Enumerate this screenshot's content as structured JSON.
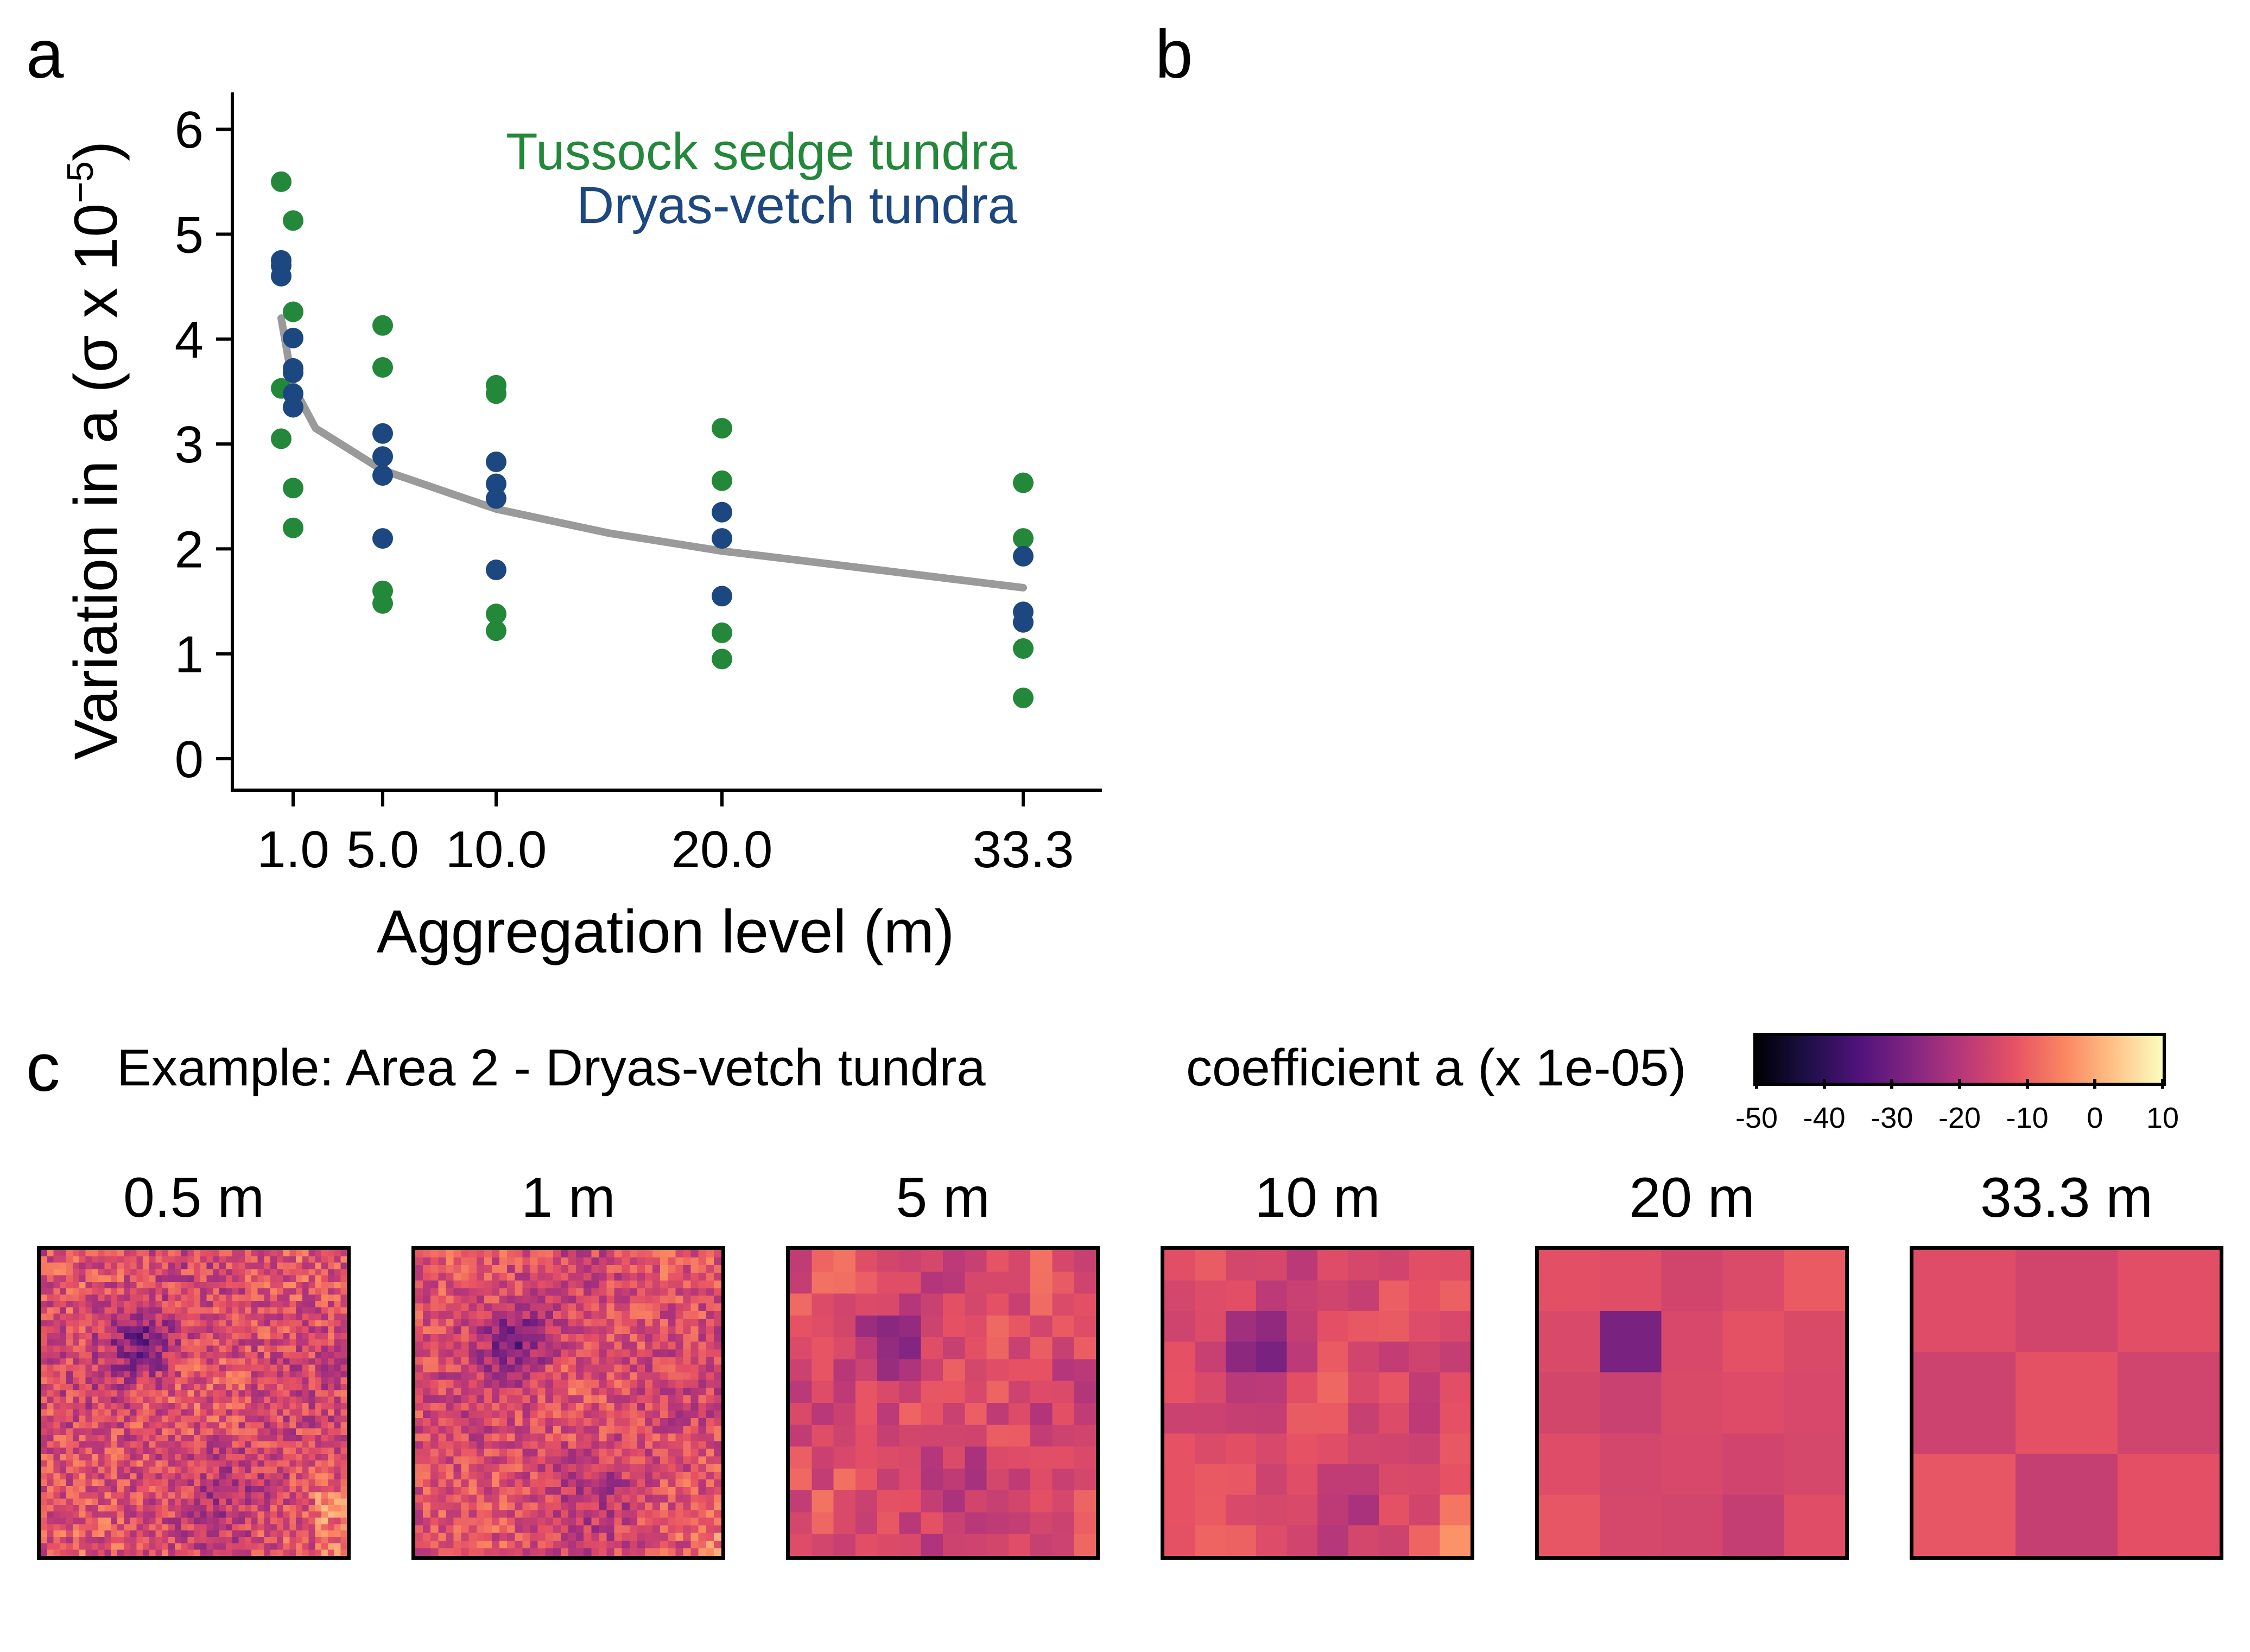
{
  "panels": {
    "a": "a",
    "b": "b",
    "c": "c"
  },
  "chart_data": {
    "type": "scatter",
    "xlabel": "Aggregation level (m)",
    "ylabel": "Variation in a (σ x 10",
    "ylabel_sup": "−5",
    "ylabel_close": ")",
    "x_ticks": [
      1.0,
      5.0,
      10.0,
      20.0,
      33.3
    ],
    "x_tick_labels": [
      "1.0",
      "5.0",
      "10.0",
      "20.0",
      "33.3"
    ],
    "y_ticks": [
      0,
      1,
      2,
      3,
      4,
      5,
      6
    ],
    "ylim": [
      -0.3,
      6.3
    ],
    "grid": false,
    "legend_position": "top-right",
    "series": [
      {
        "name": "Tussock sedge tundra",
        "color": "#23883a",
        "points": [
          [
            0.5,
            5.5
          ],
          [
            1.0,
            5.13
          ],
          [
            1.0,
            4.26
          ],
          [
            0.5,
            3.53
          ],
          [
            0.5,
            3.05
          ],
          [
            1.0,
            2.58
          ],
          [
            1.0,
            2.2
          ],
          [
            5.0,
            4.13
          ],
          [
            5.0,
            3.73
          ],
          [
            5.0,
            1.6
          ],
          [
            5.0,
            1.48
          ],
          [
            10.0,
            3.56
          ],
          [
            10.0,
            3.48
          ],
          [
            10.0,
            1.38
          ],
          [
            10.0,
            1.22
          ],
          [
            20.0,
            3.15
          ],
          [
            20.0,
            2.65
          ],
          [
            20.0,
            1.2
          ],
          [
            20.0,
            0.95
          ],
          [
            33.3,
            2.63
          ],
          [
            33.3,
            2.1
          ],
          [
            33.3,
            1.05
          ],
          [
            33.3,
            0.58
          ]
        ]
      },
      {
        "name": "Dryas-vetch tundra",
        "color": "#1c4780",
        "points": [
          [
            0.5,
            4.75
          ],
          [
            0.5,
            4.7
          ],
          [
            0.5,
            4.6
          ],
          [
            1.0,
            4.01
          ],
          [
            1.0,
            3.72
          ],
          [
            1.0,
            3.68
          ],
          [
            1.0,
            3.48
          ],
          [
            1.0,
            3.35
          ],
          [
            5.0,
            3.1
          ],
          [
            5.0,
            2.88
          ],
          [
            5.0,
            2.7
          ],
          [
            5.0,
            2.1
          ],
          [
            10.0,
            2.83
          ],
          [
            10.0,
            2.62
          ],
          [
            10.0,
            2.48
          ],
          [
            10.0,
            1.8
          ],
          [
            20.0,
            2.35
          ],
          [
            20.0,
            2.1
          ],
          [
            20.0,
            1.55
          ],
          [
            33.3,
            1.93
          ],
          [
            33.3,
            1.4
          ],
          [
            33.3,
            1.3
          ]
        ]
      }
    ],
    "fit_curve": {
      "color": "#9a9a9a",
      "points": [
        [
          0.5,
          4.2
        ],
        [
          1.0,
          3.55
        ],
        [
          2.0,
          3.15
        ],
        [
          5.0,
          2.75
        ],
        [
          10.0,
          2.38
        ],
        [
          15.0,
          2.15
        ],
        [
          20.0,
          1.98
        ],
        [
          25.0,
          1.85
        ],
        [
          33.3,
          1.63
        ]
      ]
    }
  },
  "panel_c": {
    "title": "Example: Area 2 - Dryas-vetch tundra",
    "colorbar": {
      "label": "coefficient a (x 1e-05)",
      "ticks": [
        "-50",
        "-40",
        "-30",
        "-20",
        "-10",
        "0",
        "10"
      ],
      "range": [
        -50,
        10
      ],
      "colormap": "magma"
    },
    "tiles": [
      {
        "label": "0.5 m",
        "grid": 48
      },
      {
        "label": "1 m",
        "grid": 40
      },
      {
        "label": "5 m",
        "grid": 14
      },
      {
        "label": "10 m",
        "grid": 10
      },
      {
        "label": "20 m",
        "grid": 5
      },
      {
        "label": "33.3 m",
        "grid": 3
      }
    ]
  }
}
